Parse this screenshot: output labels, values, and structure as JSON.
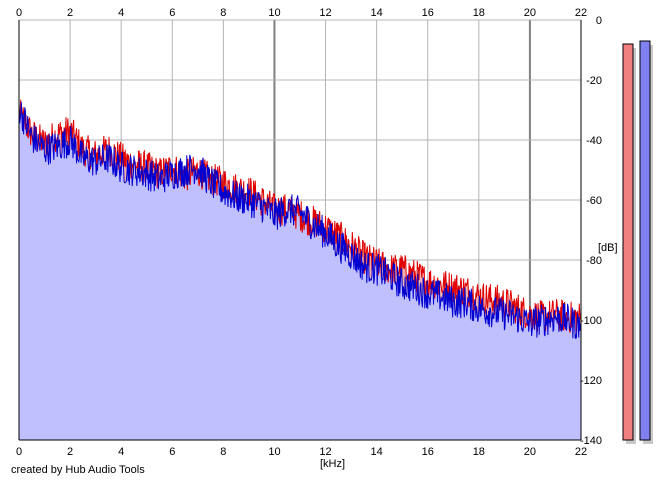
{
  "credit": "created by Hub Audio Tools",
  "colors": {
    "left_channel": "#e00000",
    "right_channel": "#0000d0",
    "fill": "#c0c0ff",
    "fill_diff": "#f0b0b0",
    "grid": "#b4b4b4",
    "grid_major": "#808080",
    "meter_left": "#f08080",
    "meter_right": "#8080f0"
  },
  "chart_data": {
    "type": "area",
    "xlabel": "[kHz]",
    "ylabel": "[dB]",
    "xlim": [
      0,
      22
    ],
    "ylim": [
      -140,
      0
    ],
    "x_ticks": [
      0,
      2,
      4,
      6,
      8,
      10,
      12,
      14,
      16,
      18,
      20,
      22
    ],
    "x_tick_labels": [
      "0",
      "2",
      "4",
      "6",
      "8",
      "10",
      "12",
      "14",
      "16",
      "18",
      "20",
      "22"
    ],
    "y_ticks": [
      0,
      -20,
      -40,
      -60,
      -80,
      -100,
      -120,
      -140
    ],
    "y_tick_labels": [
      "0",
      "-20",
      "-40",
      "-60",
      "-80",
      "-100",
      "-120",
      "-140"
    ],
    "grid": true,
    "x": [
      0,
      0.5,
      1,
      1.5,
      2,
      2.5,
      3,
      3.5,
      4,
      4.5,
      5,
      5.5,
      6,
      6.5,
      7,
      7.5,
      8,
      8.5,
      9,
      9.5,
      10,
      10.5,
      11,
      11.5,
      12,
      12.5,
      13,
      13.5,
      14,
      14.5,
      15,
      15.5,
      16,
      16.5,
      17,
      17.5,
      18,
      18.5,
      19,
      19.5,
      20,
      20.5,
      21,
      21.5,
      22
    ],
    "series": [
      {
        "channel": "left",
        "values": [
          -30,
          -37,
          -40,
          -37,
          -36,
          -42,
          -44,
          -42,
          -45,
          -47,
          -48,
          -50,
          -48,
          -51,
          -49,
          -52,
          -53,
          -55,
          -56,
          -59,
          -62,
          -62,
          -64,
          -66,
          -68,
          -71,
          -74,
          -78,
          -80,
          -82,
          -82,
          -84,
          -86,
          -87,
          -88,
          -89,
          -91,
          -92,
          -93,
          -95,
          -97,
          -98,
          -97,
          -98,
          -98
        ]
      },
      {
        "channel": "right",
        "values": [
          -28,
          -38,
          -42,
          -41,
          -39,
          -45,
          -46,
          -45,
          -48,
          -49,
          -50,
          -52,
          -50,
          -49,
          -48,
          -53,
          -56,
          -58,
          -59,
          -61,
          -64,
          -62,
          -63,
          -67,
          -70,
          -74,
          -77,
          -81,
          -82,
          -84,
          -87,
          -88,
          -90,
          -91,
          -93,
          -93,
          -95,
          -96,
          -97,
          -98,
          -100,
          -99,
          -98,
          -99,
          -101
        ]
      }
    ]
  },
  "level_meter": {
    "range_db": [
      -140,
      0
    ],
    "left_db": -8,
    "right_db": -7
  }
}
